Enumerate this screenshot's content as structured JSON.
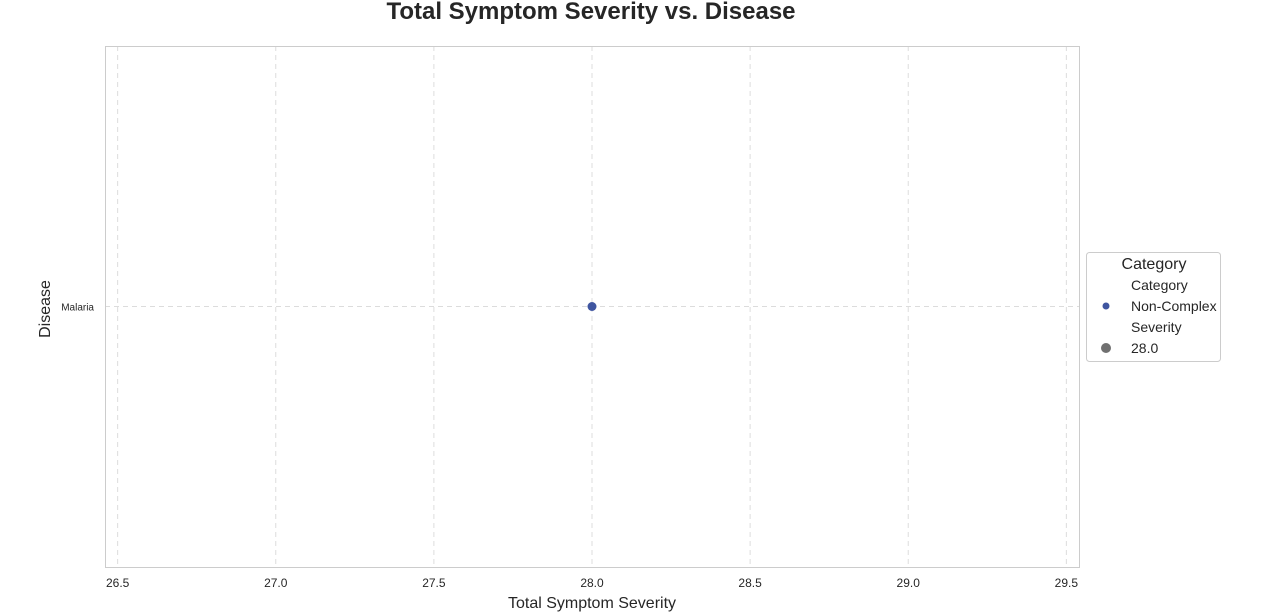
{
  "chart_data": {
    "type": "scatter",
    "title": "Total Symptom Severity vs. Disease",
    "xlabel": "Total Symptom Severity",
    "ylabel": "Disease",
    "xlim": [
      26.46,
      29.54
    ],
    "xticks": [
      "26.5",
      "27.0",
      "27.5",
      "28.0",
      "28.5",
      "29.0",
      "29.5"
    ],
    "xtick_values": [
      26.5,
      27.0,
      27.5,
      28.0,
      28.5,
      29.0,
      29.5
    ],
    "categories": [
      "Malaria"
    ],
    "grid": true,
    "series": [
      {
        "name": "Non-Complex",
        "color": "#3f55a0",
        "points": [
          {
            "x": 28.0,
            "y": "Malaria"
          }
        ]
      }
    ],
    "legend": {
      "placement": "center-right outside",
      "title": "Category",
      "entries": [
        {
          "label": "Category",
          "kind": "header"
        },
        {
          "label": "Non-Complex",
          "kind": "marker",
          "color": "#3f55a0"
        },
        {
          "label": "Severity",
          "kind": "header"
        },
        {
          "label": "28.0",
          "kind": "marker",
          "color": "#707070"
        }
      ]
    }
  }
}
